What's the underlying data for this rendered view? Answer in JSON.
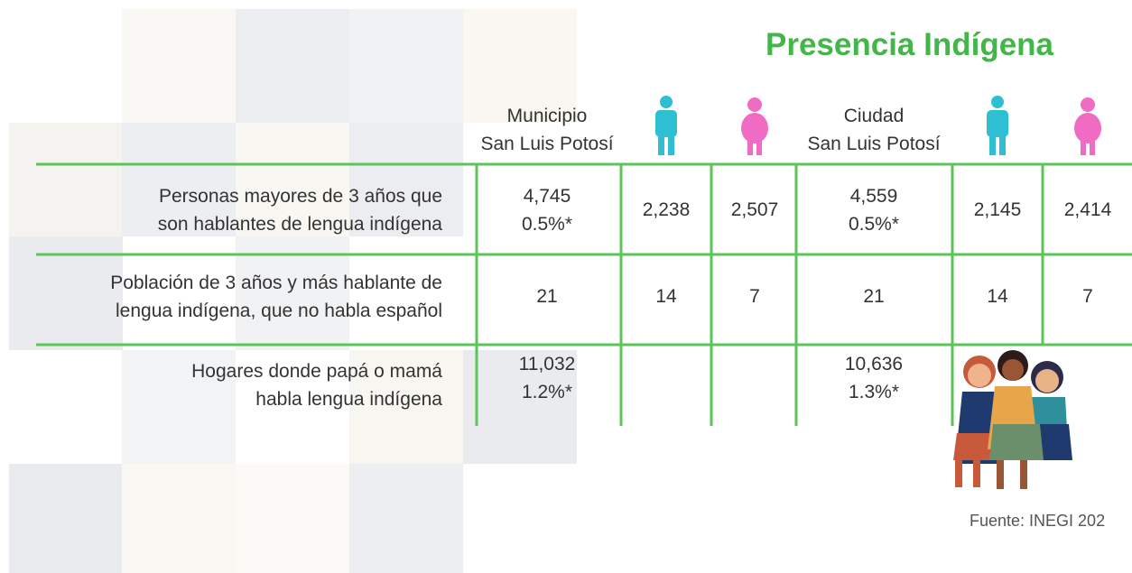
{
  "title": "Presencia Indígena",
  "columns": [
    {
      "label": [
        "Municipio",
        "San Luis Potosí"
      ]
    },
    {
      "icon": "hombre"
    },
    {
      "icon": "mujer"
    },
    {
      "label": [
        "Ciudad",
        "San Luis Potosí"
      ]
    },
    {
      "icon": "hombre"
    },
    {
      "icon": "mujer"
    }
  ],
  "rows": [
    {
      "label": [
        "Personas mayores de 3 años que",
        "son hablantes de lengua indígena"
      ],
      "cells": [
        [
          "4,745",
          "0.5%*"
        ],
        [
          "2,238"
        ],
        [
          "2,507"
        ],
        [
          "4,559",
          "0.5%*"
        ],
        [
          "2,145"
        ],
        [
          "2,414"
        ]
      ]
    },
    {
      "label": [
        "Población de 3 años y más hablante de",
        "lengua indígena, que no habla español"
      ],
      "cells": [
        [
          "21"
        ],
        [
          "14"
        ],
        [
          "7"
        ],
        [
          "21"
        ],
        [
          "14"
        ],
        [
          "7"
        ]
      ]
    },
    {
      "label": [
        "Hogares donde papá o mamá",
        "habla lengua indígena"
      ],
      "cells": [
        [
          "11,032",
          "1.2%*"
        ],
        null,
        null,
        [
          "10,636",
          "1.3%*"
        ],
        null,
        null
      ]
    }
  ],
  "source": "Fuente: INEGI 202"
}
